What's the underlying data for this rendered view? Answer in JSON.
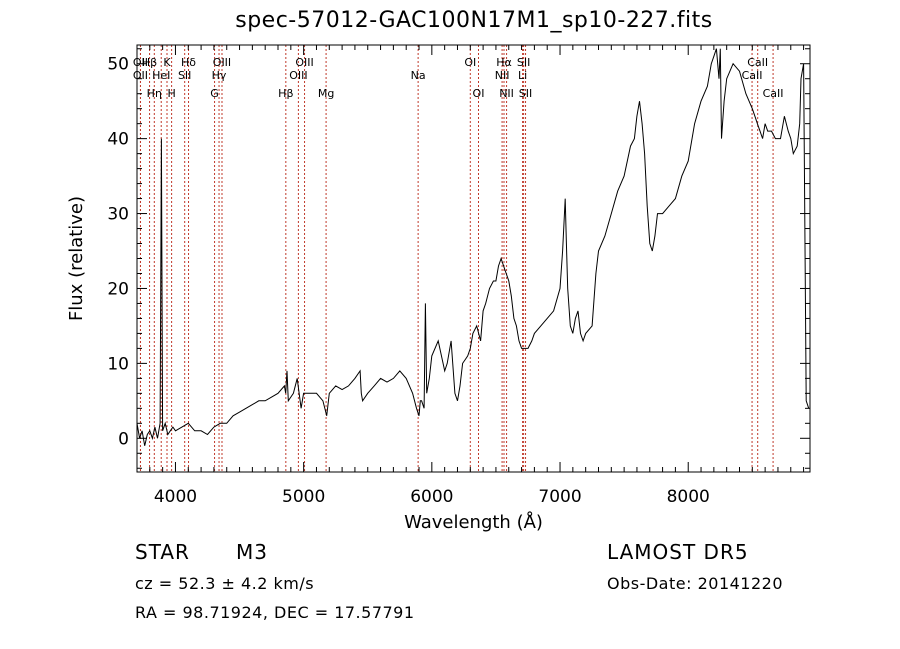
{
  "chart_data": {
    "type": "line",
    "title": "spec-57012-GAC100N17M1_sp10-227.fits",
    "xlabel": "Wavelength (Å)",
    "ylabel": "Flux (relative)",
    "xlim": [
      3700,
      8950
    ],
    "ylim": [
      -4.5,
      52.5
    ],
    "xticks": [
      4000,
      5000,
      6000,
      7000,
      8000
    ],
    "yticks": [
      0,
      10,
      20,
      30,
      40,
      50
    ],
    "grid": false,
    "series": [
      {
        "x": [
          3700,
          3720,
          3740,
          3760,
          3780,
          3800,
          3820,
          3840,
          3860,
          3870,
          3880,
          3890,
          3900,
          3920,
          3940,
          3960,
          3980,
          4000,
          4050,
          4100,
          4150,
          4200,
          4250,
          4300,
          4350,
          4400,
          4450,
          4500,
          4550,
          4600,
          4650,
          4700,
          4750,
          4800,
          4850,
          4860,
          4870,
          4880,
          4900,
          4920,
          4950,
          4980,
          5000,
          5050,
          5100,
          5150,
          5180,
          5200,
          5250,
          5300,
          5350,
          5400,
          5440,
          5450,
          5460,
          5500,
          5550,
          5600,
          5650,
          5700,
          5750,
          5800,
          5850,
          5880,
          5900,
          5910,
          5920,
          5940,
          5950,
          5960,
          5980,
          6000,
          6050,
          6100,
          6120,
          6150,
          6180,
          6200,
          6220,
          6240,
          6260,
          6280,
          6300,
          6320,
          6350,
          6380,
          6400,
          6420,
          6450,
          6480,
          6500,
          6520,
          6540,
          6560,
          6580,
          6600,
          6620,
          6640,
          6660,
          6680,
          6700,
          6720,
          6750,
          6780,
          6800,
          6850,
          6900,
          6950,
          7000,
          7020,
          7040,
          7050,
          7060,
          7080,
          7100,
          7120,
          7140,
          7160,
          7180,
          7200,
          7250,
          7280,
          7300,
          7350,
          7400,
          7450,
          7500,
          7550,
          7580,
          7600,
          7620,
          7640,
          7660,
          7680,
          7700,
          7720,
          7740,
          7760,
          7800,
          7850,
          7900,
          7950,
          8000,
          8050,
          8100,
          8150,
          8180,
          8200,
          8220,
          8240,
          8250,
          8260,
          8280,
          8300,
          8350,
          8400,
          8450,
          8500,
          8520,
          8540,
          8560,
          8580,
          8600,
          8620,
          8650,
          8680,
          8700,
          8720,
          8750,
          8780,
          8800,
          8820,
          8850,
          8870,
          8880,
          8900,
          8920,
          8940
        ],
        "y": [
          2,
          0,
          1,
          -1,
          0.5,
          1,
          0,
          1.5,
          0,
          1,
          2,
          40,
          1,
          2,
          0.5,
          1,
          1.5,
          1,
          1.5,
          2,
          1,
          1,
          0.5,
          1.5,
          2,
          2,
          3,
          3.5,
          4,
          4.5,
          5,
          5,
          5.5,
          6,
          7,
          6,
          9,
          5,
          5.5,
          6,
          8,
          4,
          6,
          6,
          6,
          5,
          3,
          6,
          7,
          6.5,
          7,
          8,
          9,
          6,
          5,
          6,
          7,
          8,
          7.5,
          8,
          9,
          8,
          6,
          4,
          3,
          5,
          5,
          4,
          18,
          6,
          8,
          11,
          13,
          9,
          10,
          13,
          6,
          5,
          7,
          10,
          10.5,
          11,
          12,
          14,
          15,
          13,
          17,
          18,
          20,
          21,
          21,
          23,
          24,
          23,
          22,
          21,
          19,
          16,
          15,
          13,
          12,
          12,
          12,
          13,
          14,
          15,
          16,
          17,
          20,
          25,
          32,
          26,
          20,
          15,
          14,
          16,
          17,
          14,
          13,
          14,
          15,
          22,
          25,
          27,
          30,
          33,
          35,
          39,
          40,
          43,
          45,
          42,
          38,
          31,
          26,
          25,
          27,
          30,
          30,
          31,
          32,
          35,
          37,
          42,
          45,
          47,
          50,
          51,
          52,
          48,
          52,
          40,
          45,
          48,
          50,
          49,
          46,
          44,
          43,
          42,
          41,
          40,
          42,
          41,
          41,
          40,
          40,
          40,
          43,
          41,
          40,
          38,
          39,
          42,
          48,
          50,
          5,
          4
        ]
      }
    ],
    "lines": [
      {
        "label": "Hβ",
        "x": 3798
      },
      {
        "label": "K",
        "x": 3934
      },
      {
        "label": "Hδ",
        "x": 4102
      },
      {
        "label": "OIII",
        "x": 4363
      },
      {
        "label": "OIII",
        "x": 5007
      },
      {
        "label": "OI",
        "x": 6300
      },
      {
        "label": "Hα",
        "x": 6563
      },
      {
        "label": "SII",
        "x": 6716
      },
      {
        "label": "CaII",
        "x": 8542
      },
      {
        "label": "OII",
        "x": 3727
      },
      {
        "label": "HeI",
        "x": 3889
      },
      {
        "label": "SII",
        "x": 4072
      },
      {
        "label": "Hγ",
        "x": 4340
      },
      {
        "label": "OIII",
        "x": 4959
      },
      {
        "label": "Na",
        "x": 5893
      },
      {
        "label": "NII",
        "x": 6548
      },
      {
        "label": "Li",
        "x": 6708
      },
      {
        "label": "CaII",
        "x": 8498
      },
      {
        "label": "OII",
        "x": 3727
      },
      {
        "label": "Hη",
        "x": 3835
      },
      {
        "label": "H",
        "x": 3970
      },
      {
        "label": "G",
        "x": 4305
      },
      {
        "label": "Hβ",
        "x": 4861
      },
      {
        "label": "Mg",
        "x": 5175
      },
      {
        "label": "OI",
        "x": 6364
      },
      {
        "label": "NII",
        "x": 6583
      },
      {
        "label": "SII",
        "x": 6731
      },
      {
        "label": "CaII",
        "x": 8662
      }
    ]
  },
  "info": {
    "object_class": "STAR",
    "subclass": "M3",
    "survey": "LAMOST DR5",
    "cz": "cz = 52.3 ± 4.2 km/s",
    "obs_date": "Obs-Date: 20141220",
    "coords": "RA =  98.71924, DEC =  17.57791"
  }
}
